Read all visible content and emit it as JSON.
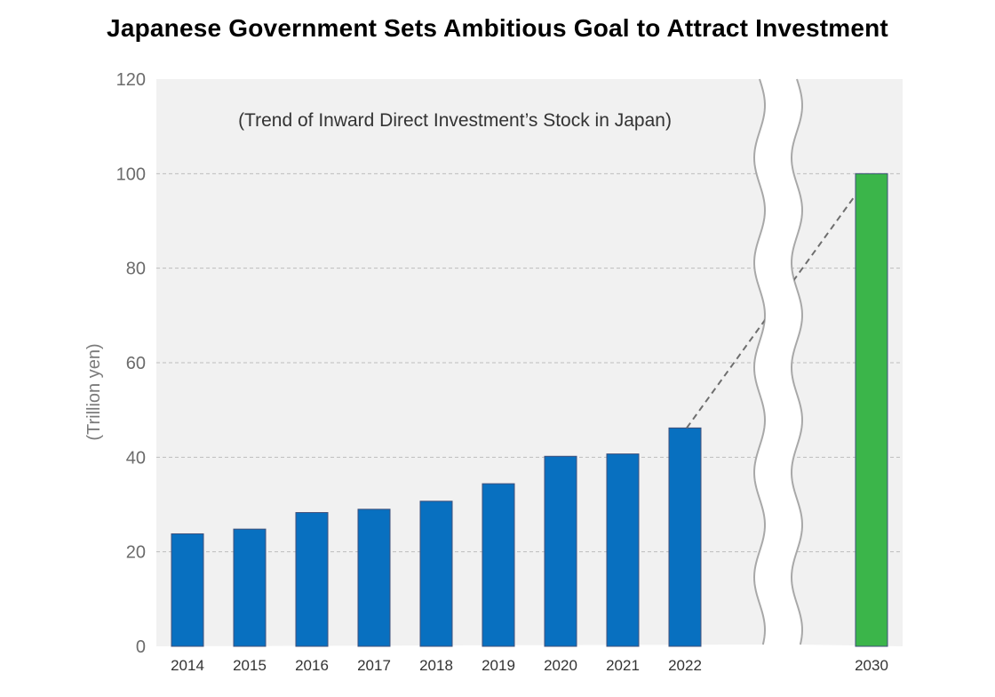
{
  "chart_data": {
    "type": "bar",
    "title": "Japanese Government Sets Ambitious Goal to Attract Investment",
    "subtitle": "(Trend of Inward Direct Investment’s Stock in Japan)",
    "ylabel": "(Trillion yen)",
    "xlabel": "",
    "ylim": [
      0,
      120
    ],
    "yticks": [
      0,
      20,
      40,
      60,
      80,
      100,
      120
    ],
    "grid": true,
    "axis_break": "between 2022 and 2030",
    "categories": [
      "2014",
      "2015",
      "2016",
      "2017",
      "2018",
      "2019",
      "2020",
      "2021",
      "2022",
      "2030"
    ],
    "values": [
      23.8,
      24.8,
      28.3,
      29.0,
      30.7,
      34.4,
      40.2,
      40.7,
      46.2,
      100
    ],
    "series_colors": {
      "actual": "#0870c0",
      "target": "#3bb54a"
    },
    "trend_line": {
      "from": "2022",
      "to": "2030",
      "style": "dashed"
    }
  }
}
